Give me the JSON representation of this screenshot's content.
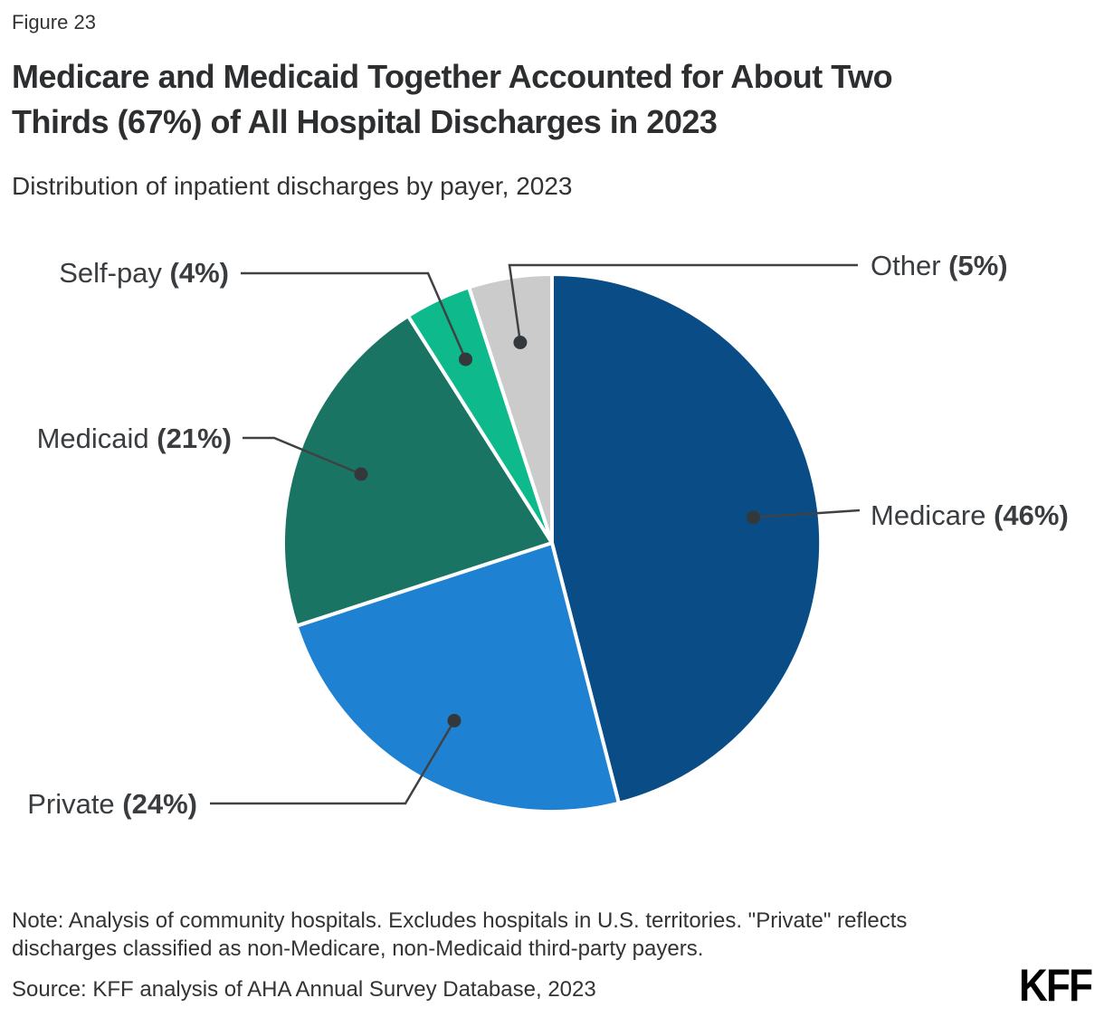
{
  "header": {
    "figure_label": "Figure 23",
    "title_line1": "Medicare and Medicaid Together Accounted for About Two",
    "title_line2": "Thirds (67%) of All Hospital Discharges in 2023",
    "subtitle": "Distribution of inpatient discharges by payer, 2023"
  },
  "chart_data": {
    "type": "pie",
    "title": "Distribution of inpatient discharges by payer, 2023",
    "start_angle_deg": 0,
    "direction": "clockwise",
    "slice_border_color": "#ffffff",
    "leader_line_color": "#3f4245",
    "leader_dot_color": "#34383b",
    "label_text_color": "#3a3d40",
    "slices": [
      {
        "label": "Medicare",
        "value": 46,
        "display": "(46%)",
        "color": "#0a4d86"
      },
      {
        "label": "Private",
        "value": 24,
        "display": "(24%)",
        "color": "#1e81d2"
      },
      {
        "label": "Medicaid",
        "value": 21,
        "display": "(21%)",
        "color": "#1a7464"
      },
      {
        "label": "Self-pay",
        "value": 4,
        "display": "(4%)",
        "color": "#0eb98b"
      },
      {
        "label": "Other",
        "value": 5,
        "display": "(5%)",
        "color": "#cbcbcb"
      }
    ]
  },
  "footer": {
    "note_line1": "Note: Analysis of community hospitals. Excludes hospitals in U.S. territories. \"Private\" reflects",
    "note_line2": "discharges classified as non-Medicare, non-Medicaid third-party payers.",
    "source": "Source: KFF analysis of AHA Annual Survey Database, 2023",
    "logo": "KFF"
  }
}
